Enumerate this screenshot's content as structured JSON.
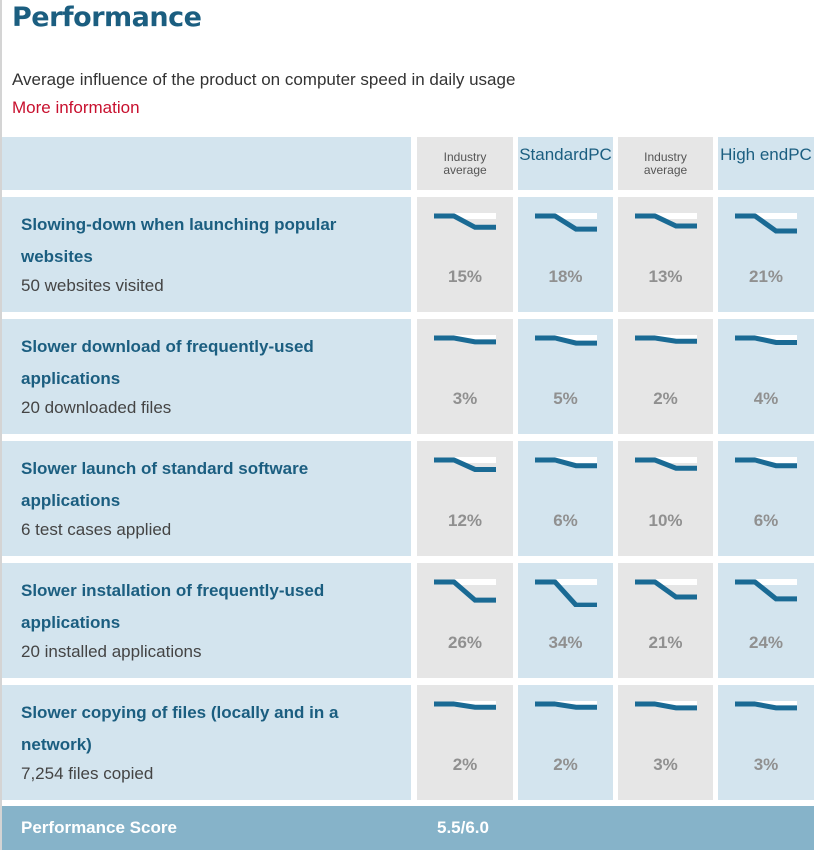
{
  "header": {
    "title": "Performance",
    "subtitle": "Average influence of the product on computer speed in daily usage",
    "more_link": "More information"
  },
  "columns": [
    {
      "label": "Industry average",
      "lines": [
        "Industry",
        "average"
      ],
      "type": "industry"
    },
    {
      "label": "Standard PC",
      "lines": [
        "Standard",
        "PC"
      ],
      "type": "product"
    },
    {
      "label": "Industry average",
      "lines": [
        "Industry",
        "average"
      ],
      "type": "industry"
    },
    {
      "label": "High end PC",
      "lines": [
        "High end",
        "PC"
      ],
      "type": "product"
    }
  ],
  "rows": [
    {
      "name": "Slowing-down when launching popular websites",
      "detail": "50 websites visited",
      "values": [
        "15%",
        "18%",
        "13%",
        "21%"
      ],
      "fractions": [
        0.15,
        0.18,
        0.13,
        0.21
      ]
    },
    {
      "name": "Slower download of frequently-used applications",
      "detail": "20 downloaded files",
      "values": [
        "3%",
        "5%",
        "2%",
        "4%"
      ],
      "fractions": [
        0.03,
        0.05,
        0.02,
        0.04
      ]
    },
    {
      "name": "Slower launch of standard software applications",
      "detail": "6 test cases applied",
      "values": [
        "12%",
        "6%",
        "10%",
        "6%"
      ],
      "fractions": [
        0.12,
        0.06,
        0.1,
        0.06
      ]
    },
    {
      "name": "Slower installation of frequently-used applications",
      "detail": "20 installed applications",
      "values": [
        "26%",
        "34%",
        "21%",
        "24%"
      ],
      "fractions": [
        0.26,
        0.34,
        0.21,
        0.24
      ]
    },
    {
      "name": "Slower copying of files (locally and in a network)",
      "detail": "7,254 files copied",
      "values": [
        "2%",
        "2%",
        "3%",
        "3%"
      ],
      "fractions": [
        0.02,
        0.02,
        0.03,
        0.03
      ]
    }
  ],
  "footer": {
    "label": "Performance Score",
    "score": "5.5/6.0"
  },
  "colors": {
    "accent": "#1b5e80",
    "link": "#c8102e",
    "sparkline": "#1a6a94",
    "footer": "#86b3c9"
  }
}
